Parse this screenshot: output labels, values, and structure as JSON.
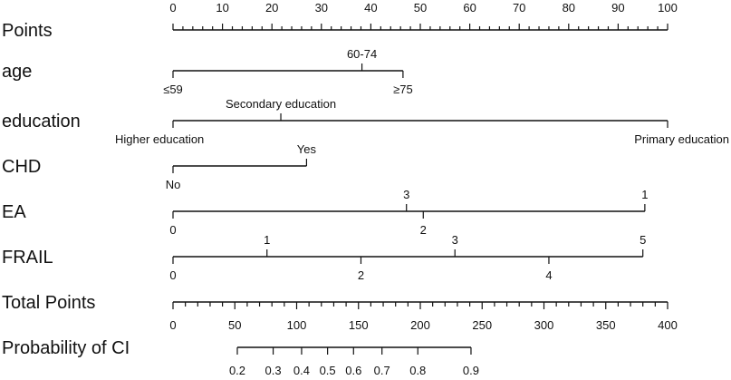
{
  "chart_data": {
    "type": "nomogram",
    "points_scale": {
      "label": "Points",
      "range": [
        0,
        100
      ],
      "major_ticks": [
        0,
        10,
        20,
        30,
        40,
        50,
        60,
        70,
        80,
        90,
        100
      ],
      "minor_step": 2
    },
    "variables": [
      {
        "name": "age",
        "levels": [
          {
            "label": "≤59",
            "points": 0
          },
          {
            "label": "60-74",
            "points": 38.2
          },
          {
            "label": "≥75",
            "points": 46.5
          }
        ]
      },
      {
        "name": "education",
        "levels": [
          {
            "label": "Higher education",
            "points": 0
          },
          {
            "label": "Secondary education",
            "points": 21.8
          },
          {
            "label": "Primary education",
            "points": 100
          }
        ]
      },
      {
        "name": "CHD",
        "levels": [
          {
            "label": "No",
            "points": 0
          },
          {
            "label": "Yes",
            "points": 27.0
          }
        ]
      },
      {
        "name": "EA",
        "levels": [
          {
            "label": "0",
            "points": 0
          },
          {
            "label": "3",
            "points": 47.2
          },
          {
            "label": "2",
            "points": 50.6
          },
          {
            "label": "1",
            "points": 95.4
          }
        ]
      },
      {
        "name": "FRAIL",
        "levels": [
          {
            "label": "0",
            "points": 0
          },
          {
            "label": "1",
            "points": 19.0
          },
          {
            "label": "2",
            "points": 38.0
          },
          {
            "label": "3",
            "points": 57.0
          },
          {
            "label": "4",
            "points": 76.0
          },
          {
            "label": "5",
            "points": 95.0
          }
        ]
      }
    ],
    "total_points_scale": {
      "label": "Total Points",
      "range": [
        0,
        400
      ],
      "major_ticks": [
        0,
        50,
        100,
        150,
        200,
        250,
        300,
        350,
        400
      ],
      "minor_step": 10
    },
    "probability_scale": {
      "label": "Probability of CI",
      "ticks": [
        {
          "label": "0.2",
          "total_points": 52
        },
        {
          "label": "0.3",
          "total_points": 81
        },
        {
          "label": "0.4",
          "total_points": 104
        },
        {
          "label": "0.5",
          "total_points": 125
        },
        {
          "label": "0.6",
          "total_points": 146
        },
        {
          "label": "0.7",
          "total_points": 169
        },
        {
          "label": "0.8",
          "total_points": 198
        },
        {
          "label": "0.9",
          "total_points": 241
        }
      ]
    }
  }
}
